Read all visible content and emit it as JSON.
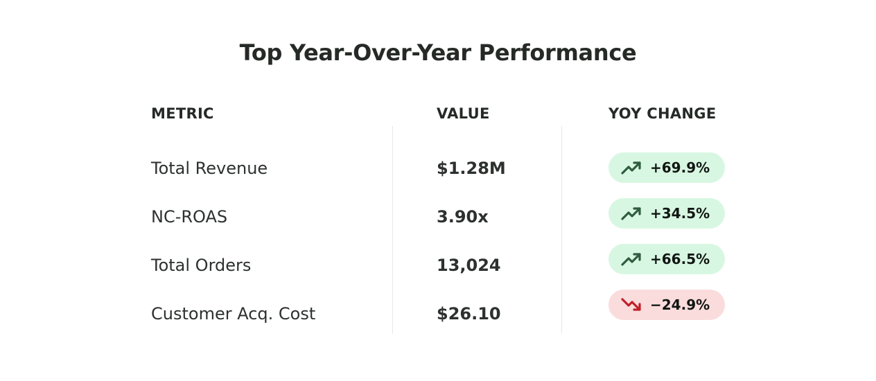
{
  "title": "Top Year-Over-Year Performance",
  "columns": {
    "metric": "METRIC",
    "value": "VALUE",
    "yoy": "YOY CHANGE"
  },
  "colors": {
    "up_bg": "#d8f7e2",
    "up_icon": "#2f5c3f",
    "down_bg": "#fadcdc",
    "down_icon": "#c0202a"
  },
  "rows": [
    {
      "metric": "Total Revenue",
      "value": "$1.28M",
      "change": "+69.9%",
      "trend": "up",
      "icon": "trending-up-icon"
    },
    {
      "metric": "NC-ROAS",
      "value": "3.90x",
      "change": "+34.5%",
      "trend": "up",
      "icon": "trending-up-icon"
    },
    {
      "metric": "Total Orders",
      "value": "13,024",
      "change": "+66.5%",
      "trend": "up",
      "icon": "trending-up-icon"
    },
    {
      "metric": "Customer Acq. Cost",
      "value": "$26.10",
      "change": "−24.9%",
      "trend": "down",
      "icon": "trending-down-icon"
    }
  ]
}
